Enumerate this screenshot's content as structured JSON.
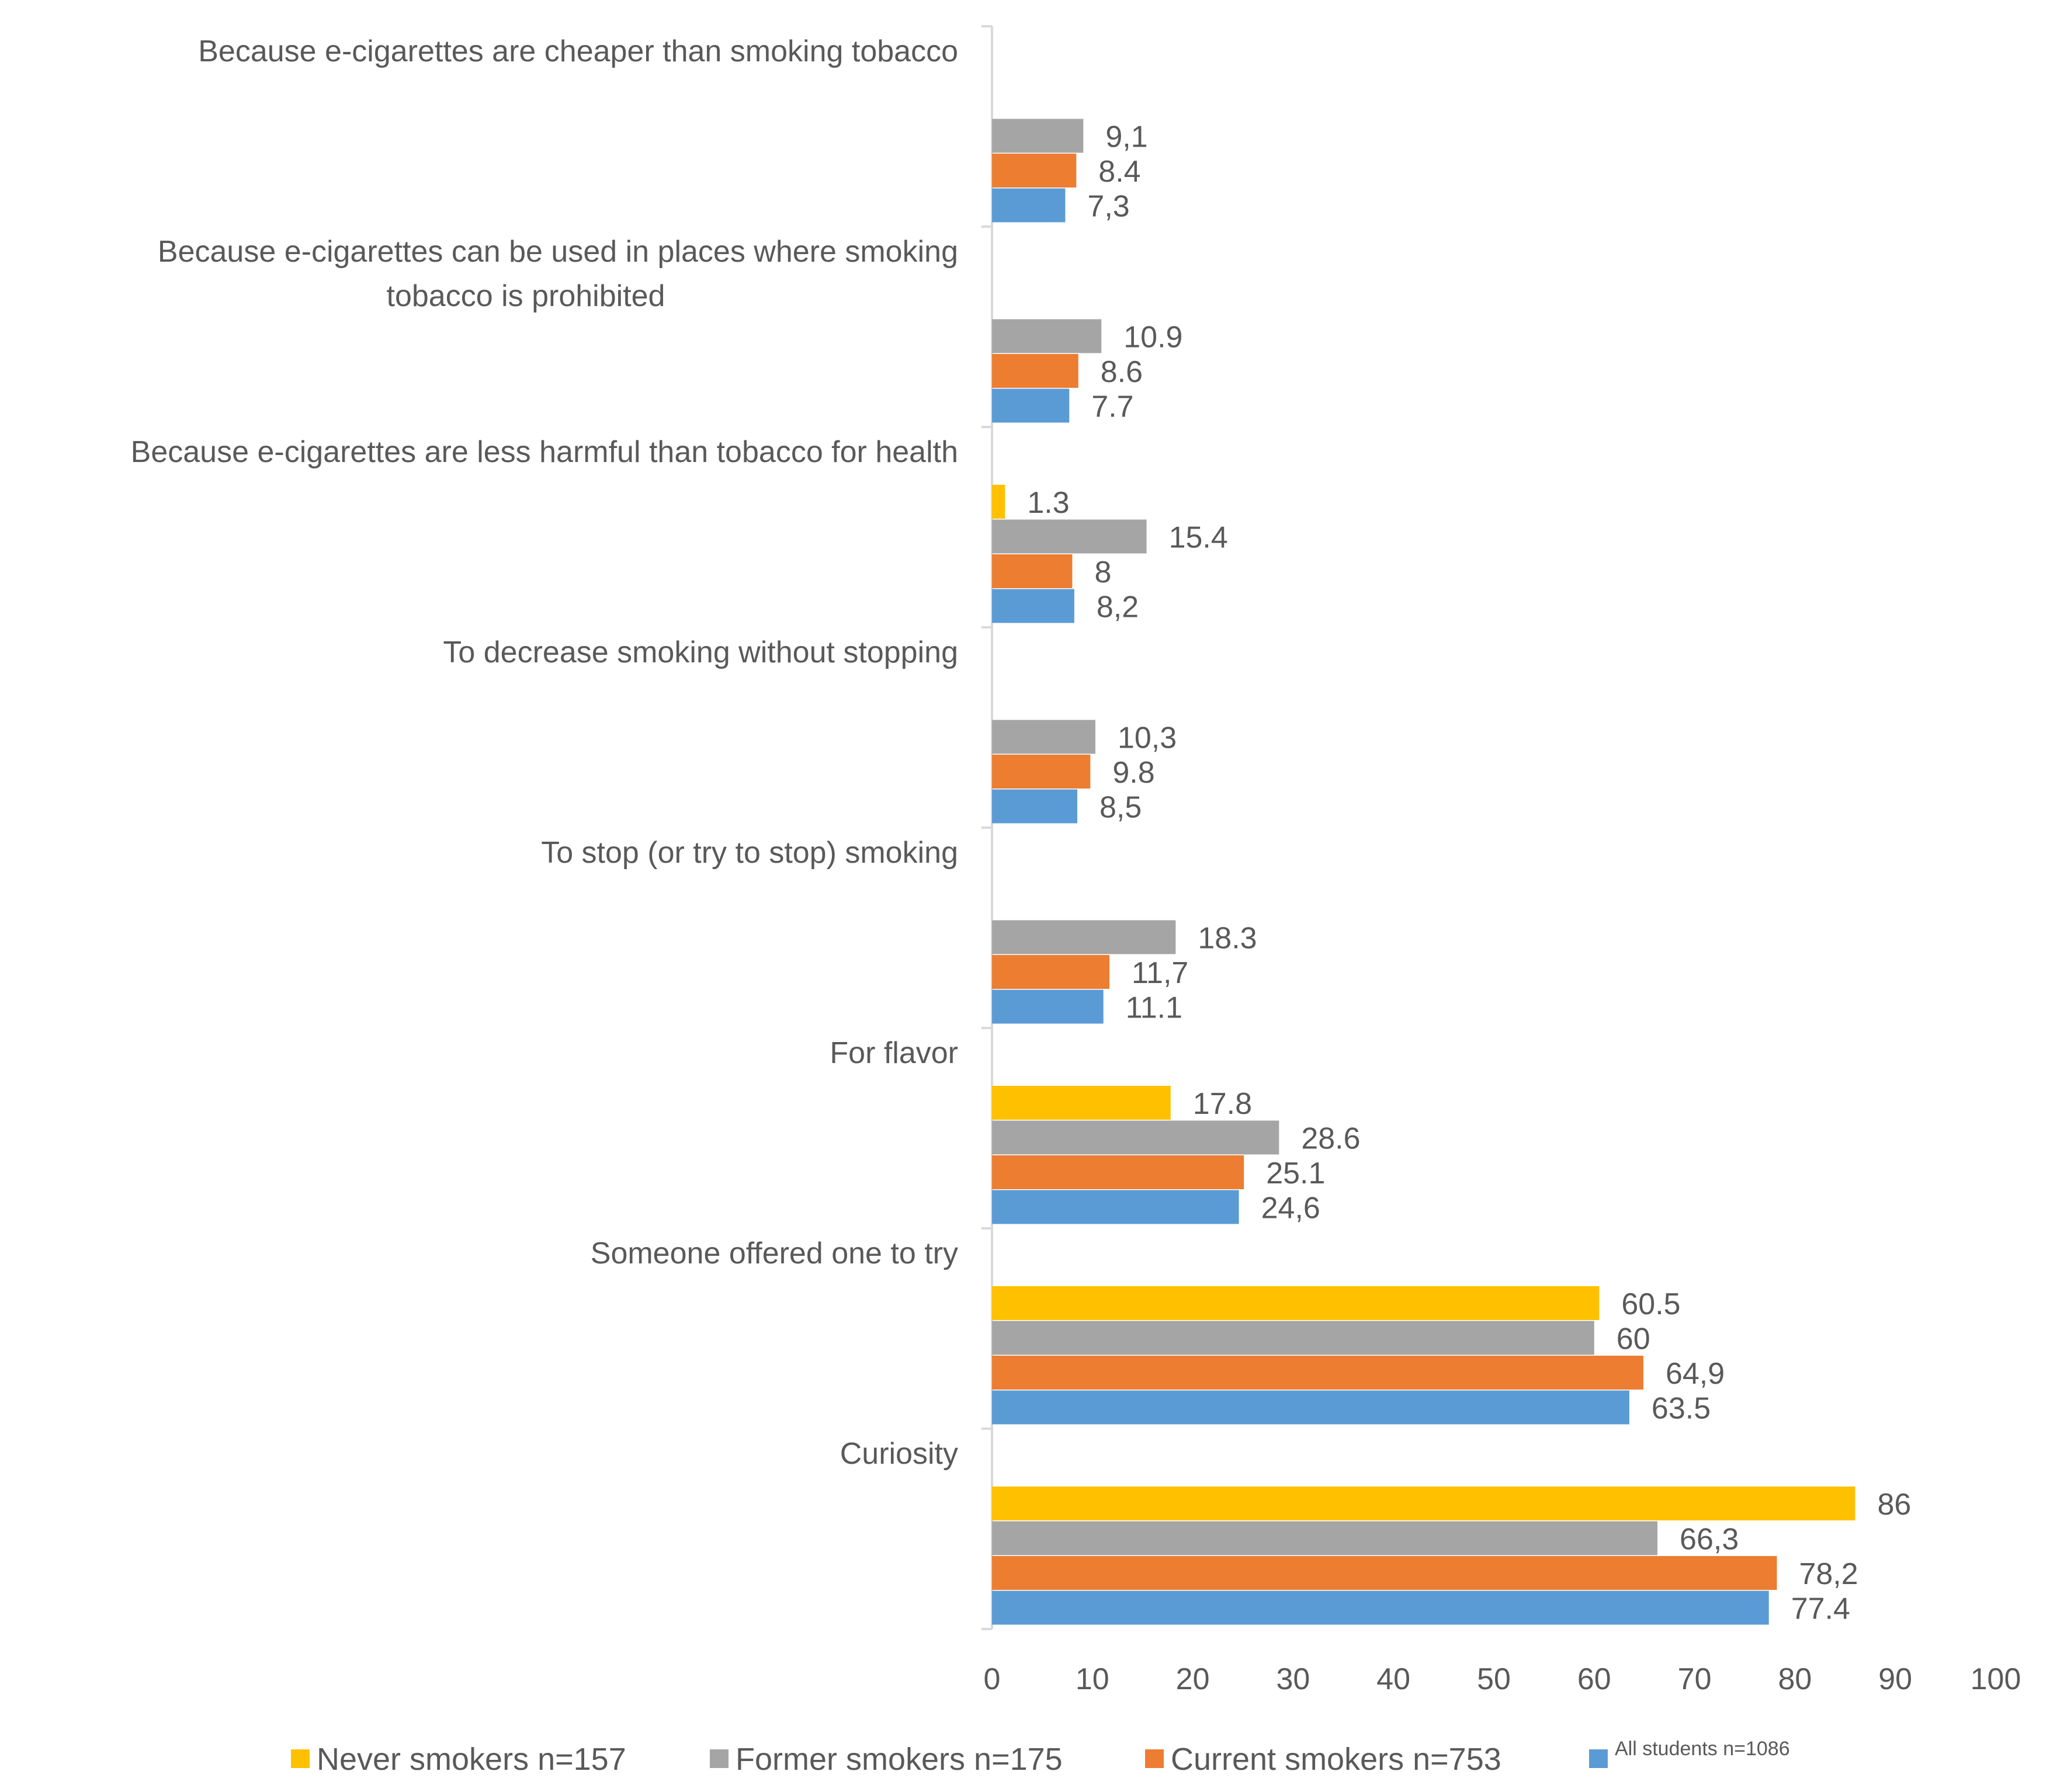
{
  "chart_data": {
    "type": "bar",
    "orientation": "horizontal",
    "title": "",
    "xlabel": "",
    "ylabel": "",
    "xlim": [
      0,
      100
    ],
    "x_ticks": [
      "0",
      "10",
      "20",
      "30",
      "40",
      "50",
      "60",
      "70",
      "80",
      "90",
      "100"
    ],
    "grid": false,
    "legend_position": "bottom",
    "categories": [
      {
        "lines": [
          "Because e-cigarettes are cheaper than smoking tobacco"
        ]
      },
      {
        "lines": [
          "Because e-cigarettes can be used in places where smoking",
          "tobacco is prohibited"
        ]
      },
      {
        "lines": [
          "Because e-cigarettes are less harmful than tobacco for health"
        ]
      },
      {
        "lines": [
          "To decrease smoking without stopping"
        ]
      },
      {
        "lines": [
          "To stop (or try to stop) smoking"
        ]
      },
      {
        "lines": [
          "For flavor"
        ]
      },
      {
        "lines": [
          "Someone offered one to try"
        ]
      },
      {
        "lines": [
          "Curiosity"
        ]
      }
    ],
    "series": [
      {
        "name": "Never smokers n=157",
        "color": "#FFC000",
        "values": [
          null,
          null,
          1.3,
          null,
          null,
          17.8,
          60.5,
          86
        ],
        "labels": [
          null,
          null,
          "1.3",
          null,
          null,
          "17.8",
          "60.5",
          "86"
        ]
      },
      {
        "name": "Former smokers n=175",
        "color": "#A5A5A5",
        "values": [
          9.1,
          10.9,
          15.4,
          10.3,
          18.3,
          28.6,
          60,
          66.3
        ],
        "labels": [
          "9,1",
          "10.9",
          "15.4",
          "10,3",
          "18.3",
          "28.6",
          "60",
          "66,3"
        ]
      },
      {
        "name": "Current smokers n=753",
        "color": "#ED7D31",
        "values": [
          8.4,
          8.6,
          8,
          9.8,
          11.7,
          25.1,
          64.9,
          78.2
        ],
        "labels": [
          "8.4",
          "8.6",
          "8",
          "9.8",
          "11,7",
          "25.1",
          "64,9",
          "78,2"
        ]
      },
      {
        "name": "All students n=1086",
        "color": "#5B9BD5",
        "values": [
          7.3,
          7.7,
          8.2,
          8.5,
          11.1,
          24.6,
          63.5,
          77.4
        ],
        "labels": [
          "7,3",
          "7.7",
          "8,2",
          "8,5",
          "11.1",
          "24,6",
          "63.5",
          "77.4"
        ]
      }
    ]
  }
}
